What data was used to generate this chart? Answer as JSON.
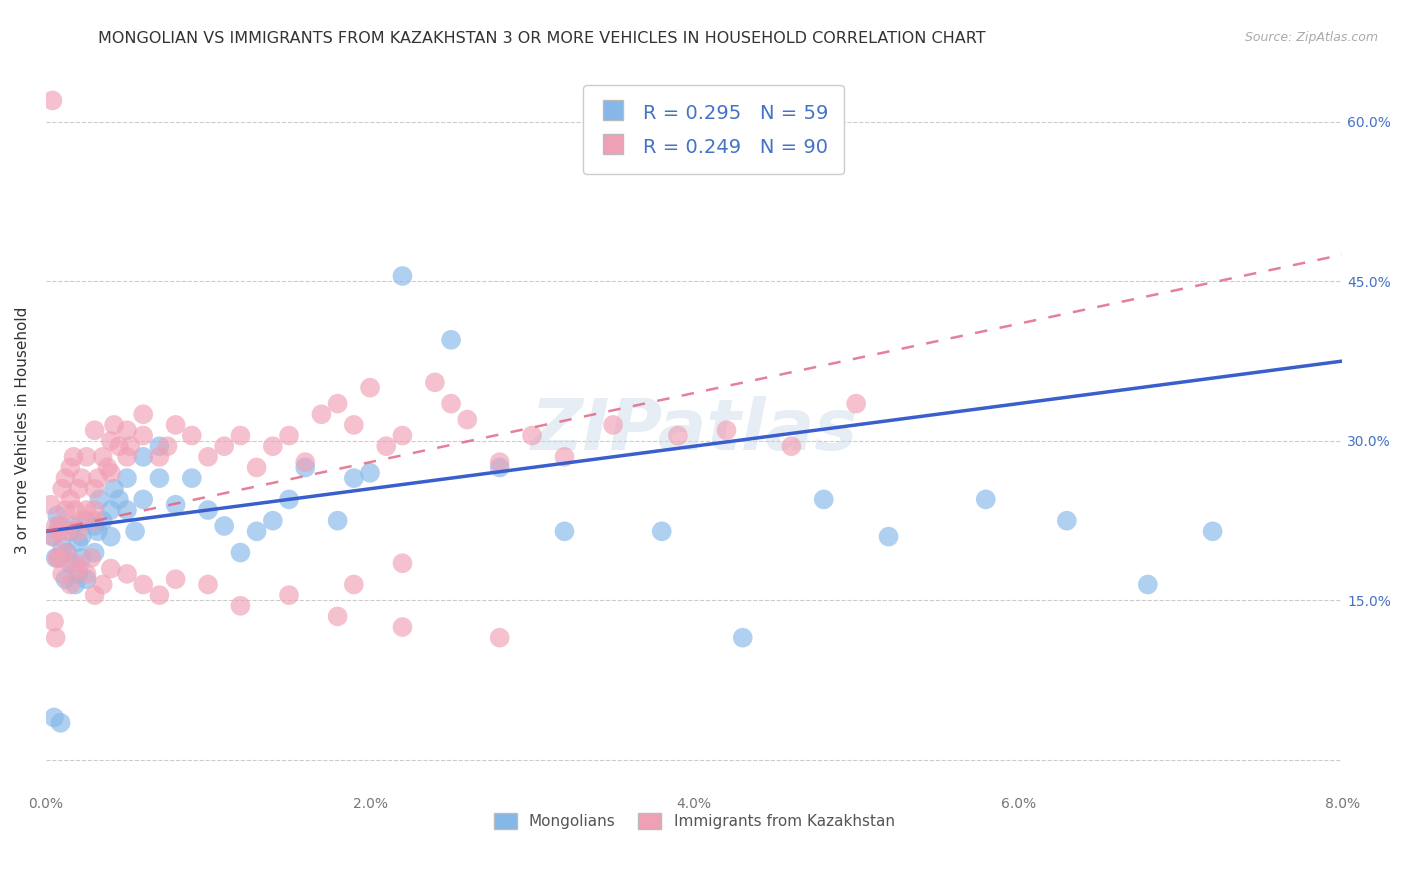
{
  "title": "MONGOLIAN VS IMMIGRANTS FROM KAZAKHSTAN 3 OR MORE VEHICLES IN HOUSEHOLD CORRELATION CHART",
  "source": "Source: ZipAtlas.com",
  "ylabel": "3 or more Vehicles in Household",
  "xmin": 0.0,
  "xmax": 0.08,
  "ymin": -0.03,
  "ymax": 0.65,
  "xticks": [
    0.0,
    0.01,
    0.02,
    0.03,
    0.04,
    0.05,
    0.06,
    0.07,
    0.08
  ],
  "xticklabels": [
    "0.0%",
    "",
    "2.0%",
    "",
    "4.0%",
    "",
    "6.0%",
    "",
    "8.0%"
  ],
  "yticks": [
    0.0,
    0.15,
    0.3,
    0.45,
    0.6
  ],
  "yticklabels": [
    "",
    "15.0%",
    "30.0%",
    "45.0%",
    "60.0%"
  ],
  "legend_r_blue": "0.295",
  "legend_n_blue": "59",
  "legend_r_pink": "0.249",
  "legend_n_pink": "90",
  "blue_color": "#85B8E8",
  "pink_color": "#F0A0B5",
  "blue_line_color": "#3A5FCD",
  "pink_line_color": "#E06080",
  "watermark": "ZIPatlas",
  "legend_label_blue": "Mongolians",
  "legend_label_pink": "Immigrants from Kazakhstan",
  "blue_line_x0": 0.0,
  "blue_line_y0": 0.215,
  "blue_line_x1": 0.08,
  "blue_line_y1": 0.375,
  "pink_line_x0": 0.0,
  "pink_line_y0": 0.215,
  "pink_line_x1": 0.08,
  "pink_line_y1": 0.475,
  "mongolians_x": [
    0.0004,
    0.0006,
    0.0007,
    0.0008,
    0.001,
    0.0012,
    0.0013,
    0.0015,
    0.0015,
    0.0017,
    0.0018,
    0.002,
    0.002,
    0.0022,
    0.0022,
    0.0025,
    0.0025,
    0.003,
    0.003,
    0.0032,
    0.0033,
    0.0035,
    0.004,
    0.004,
    0.0042,
    0.0045,
    0.005,
    0.005,
    0.0055,
    0.006,
    0.006,
    0.007,
    0.007,
    0.008,
    0.009,
    0.01,
    0.011,
    0.012,
    0.013,
    0.014,
    0.015,
    0.016,
    0.018,
    0.019,
    0.02,
    0.022,
    0.025,
    0.028,
    0.032,
    0.038,
    0.043,
    0.048,
    0.052,
    0.058,
    0.063,
    0.068,
    0.072,
    0.0005,
    0.0009
  ],
  "mongolians_y": [
    0.21,
    0.19,
    0.23,
    0.22,
    0.2,
    0.17,
    0.195,
    0.185,
    0.215,
    0.22,
    0.165,
    0.175,
    0.205,
    0.21,
    0.19,
    0.17,
    0.225,
    0.22,
    0.195,
    0.215,
    0.245,
    0.225,
    0.21,
    0.235,
    0.255,
    0.245,
    0.235,
    0.265,
    0.215,
    0.245,
    0.285,
    0.265,
    0.295,
    0.24,
    0.265,
    0.235,
    0.22,
    0.195,
    0.215,
    0.225,
    0.245,
    0.275,
    0.225,
    0.265,
    0.27,
    0.455,
    0.395,
    0.275,
    0.215,
    0.215,
    0.115,
    0.245,
    0.21,
    0.245,
    0.225,
    0.165,
    0.215,
    0.04,
    0.035
  ],
  "kazakh_x": [
    0.0003,
    0.0005,
    0.0006,
    0.0007,
    0.0008,
    0.001,
    0.001,
    0.0012,
    0.0012,
    0.0013,
    0.0015,
    0.0015,
    0.0017,
    0.0018,
    0.002,
    0.002,
    0.0022,
    0.0022,
    0.0025,
    0.0025,
    0.003,
    0.003,
    0.003,
    0.0032,
    0.0035,
    0.0038,
    0.004,
    0.004,
    0.0042,
    0.0045,
    0.005,
    0.005,
    0.0052,
    0.006,
    0.006,
    0.007,
    0.0075,
    0.008,
    0.009,
    0.01,
    0.011,
    0.012,
    0.013,
    0.014,
    0.015,
    0.016,
    0.017,
    0.018,
    0.019,
    0.02,
    0.021,
    0.022,
    0.024,
    0.025,
    0.026,
    0.028,
    0.03,
    0.032,
    0.035,
    0.039,
    0.042,
    0.046,
    0.05,
    0.003,
    0.0005,
    0.0008,
    0.001,
    0.0012,
    0.0015,
    0.0018,
    0.002,
    0.0025,
    0.003,
    0.0035,
    0.004,
    0.005,
    0.006,
    0.007,
    0.008,
    0.01,
    0.012,
    0.015,
    0.018,
    0.022,
    0.028,
    0.0028,
    0.019,
    0.022,
    0.0004,
    0.0006
  ],
  "kazakh_y": [
    0.24,
    0.13,
    0.22,
    0.19,
    0.215,
    0.255,
    0.22,
    0.265,
    0.235,
    0.215,
    0.275,
    0.245,
    0.285,
    0.235,
    0.215,
    0.255,
    0.225,
    0.265,
    0.235,
    0.285,
    0.255,
    0.235,
    0.31,
    0.265,
    0.285,
    0.275,
    0.27,
    0.3,
    0.315,
    0.295,
    0.31,
    0.285,
    0.295,
    0.305,
    0.325,
    0.285,
    0.295,
    0.315,
    0.305,
    0.285,
    0.295,
    0.305,
    0.275,
    0.295,
    0.305,
    0.28,
    0.325,
    0.335,
    0.315,
    0.35,
    0.295,
    0.305,
    0.355,
    0.335,
    0.32,
    0.28,
    0.305,
    0.285,
    0.315,
    0.305,
    0.31,
    0.295,
    0.335,
    0.225,
    0.21,
    0.19,
    0.175,
    0.195,
    0.165,
    0.185,
    0.18,
    0.175,
    0.155,
    0.165,
    0.18,
    0.175,
    0.165,
    0.155,
    0.17,
    0.165,
    0.145,
    0.155,
    0.135,
    0.125,
    0.115,
    0.19,
    0.165,
    0.185,
    0.62,
    0.115
  ]
}
